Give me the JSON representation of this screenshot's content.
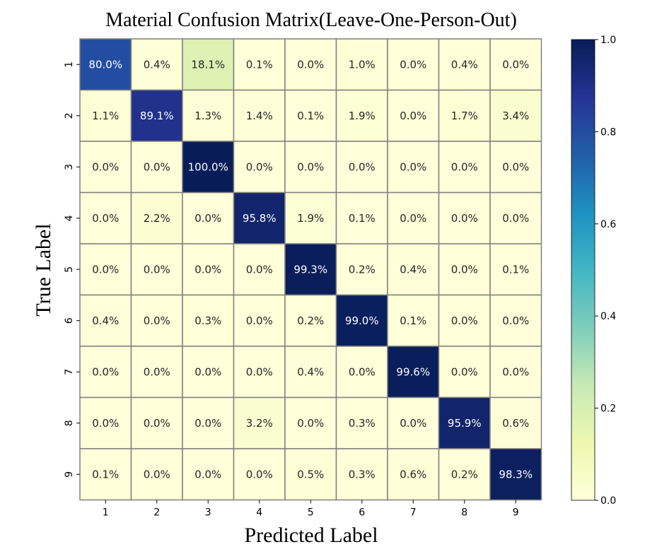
{
  "chart_data": {
    "type": "heatmap",
    "title": "Material Confusion Matrix(Leave-One-Person-Out)",
    "xlabel": "Predicted Label",
    "ylabel": "True Label",
    "x_categories": [
      "1",
      "2",
      "3",
      "4",
      "5",
      "6",
      "7",
      "8",
      "9"
    ],
    "y_categories": [
      "1",
      "2",
      "3",
      "4",
      "5",
      "6",
      "7",
      "8",
      "9"
    ],
    "values": [
      [
        80.0,
        0.4,
        18.1,
        0.1,
        0.0,
        1.0,
        0.0,
        0.4,
        0.0
      ],
      [
        1.1,
        89.1,
        1.3,
        1.4,
        0.1,
        1.9,
        0.0,
        1.7,
        3.4
      ],
      [
        0.0,
        0.0,
        100.0,
        0.0,
        0.0,
        0.0,
        0.0,
        0.0,
        0.0
      ],
      [
        0.0,
        2.2,
        0.0,
        95.8,
        1.9,
        0.1,
        0.0,
        0.0,
        0.0
      ],
      [
        0.0,
        0.0,
        0.0,
        0.0,
        99.3,
        0.2,
        0.4,
        0.0,
        0.1
      ],
      [
        0.4,
        0.0,
        0.3,
        0.0,
        0.2,
        99.0,
        0.1,
        0.0,
        0.0
      ],
      [
        0.0,
        0.0,
        0.0,
        0.0,
        0.4,
        0.0,
        99.6,
        0.0,
        0.0
      ],
      [
        0.0,
        0.0,
        0.0,
        3.2,
        0.0,
        0.3,
        0.0,
        95.9,
        0.6
      ],
      [
        0.1,
        0.0,
        0.0,
        0.0,
        0.5,
        0.3,
        0.6,
        0.2,
        98.3
      ]
    ],
    "value_format": "percent_1dp",
    "colormap": "YlGnBu",
    "colorbar": {
      "range": [
        0.0,
        1.0
      ],
      "ticks": [
        "0.0",
        "0.2",
        "0.4",
        "0.6",
        "0.8",
        "1.0"
      ]
    },
    "cell_border_color": "#808080",
    "text_light_color": "#ffffff",
    "text_dark_color": "#262626"
  }
}
